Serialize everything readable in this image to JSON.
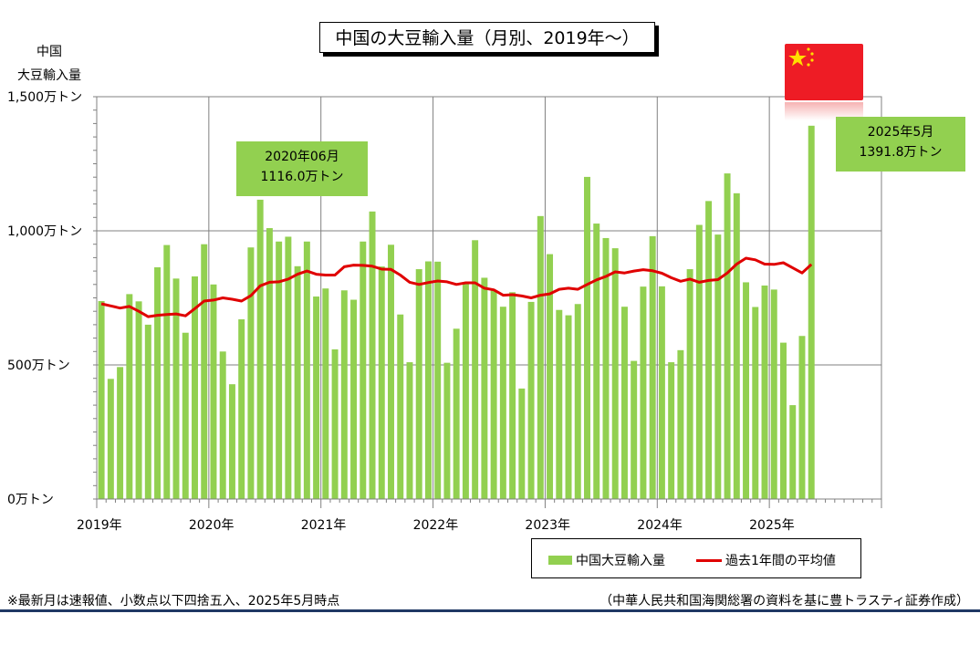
{
  "title": "中国の大豆輸入量（月別、2019年～）",
  "y_axis_label_line1": "中国",
  "y_axis_label_line2": "大豆輸入量",
  "legend": {
    "bar_label": "中国大豆輸入量",
    "line_label": "過去1年間の平均値"
  },
  "annotation_peak": {
    "line1": "2020年06月",
    "line2": "1116.0万トン"
  },
  "annotation_latest": {
    "line1": "2025年5月",
    "line2": "1391.8万トン"
  },
  "footnote_left": "※最新月は速報値、小数点以下四捨五入、2025年5月時点",
  "footnote_right": "（中華人民共和国海関総署の資料を基に豊トラスティ証券作成）",
  "colors": {
    "bar": "#92d050",
    "line": "#e00000",
    "flag": "#ee1c25",
    "flag_star": "#ffde00",
    "rule": "#1f3864"
  },
  "icons": {
    "flag": "china-flag-icon"
  },
  "chart_data": {
    "type": "bar",
    "x_start": "2019-01",
    "x_end": "2025-12",
    "ylim": [
      0,
      1500
    ],
    "y_ticks": [
      {
        "value": 0,
        "label": "0万トン"
      },
      {
        "value": 500,
        "label": "500万トン"
      },
      {
        "value": 1000,
        "label": "1,000万トン"
      },
      {
        "value": 1500,
        "label": "1,500万トン"
      }
    ],
    "x_tick_labels": [
      "2019年",
      "2020年",
      "2021年",
      "2022年",
      "2023年",
      "2024年",
      "2025年"
    ],
    "series": [
      {
        "name": "中国大豆輸入量",
        "type": "bar",
        "values": [
          738,
          448,
          492,
          764,
          737,
          650,
          864,
          947,
          822,
          620,
          830,
          950,
          800,
          550,
          428,
          670,
          938,
          1116,
          1010,
          960,
          978,
          868,
          960,
          755,
          785,
          558,
          778,
          743,
          960,
          1072,
          867,
          948,
          688,
          510,
          857,
          886,
          885,
          508,
          635,
          805,
          965,
          825,
          777,
          717,
          771,
          412,
          735,
          1055,
          913,
          705,
          685,
          727,
          1201,
          1027,
          973,
          935,
          717,
          515,
          792,
          980,
          793,
          510,
          555,
          857,
          1022,
          1111,
          986,
          1214,
          1140,
          808,
          716,
          796,
          781,
          583,
          350,
          608,
          1391.8
        ]
      },
      {
        "name": "過去1年間の平均値",
        "type": "line",
        "values": [
          728,
          720,
          712,
          718,
          700,
          680,
          685,
          688,
          690,
          683,
          710,
          738,
          742,
          750,
          745,
          738,
          758,
          795,
          808,
          810,
          820,
          838,
          850,
          838,
          835,
          835,
          866,
          872,
          871,
          868,
          857,
          856,
          835,
          808,
          800,
          807,
          813,
          810,
          800,
          806,
          806,
          786,
          780,
          760,
          762,
          757,
          750,
          760,
          765,
          782,
          786,
          782,
          800,
          817,
          830,
          847,
          843,
          850,
          855,
          851,
          842,
          825,
          812,
          820,
          808,
          815,
          818,
          843,
          876,
          898,
          892,
          876,
          875,
          881,
          862,
          843,
          875
        ]
      }
    ]
  }
}
